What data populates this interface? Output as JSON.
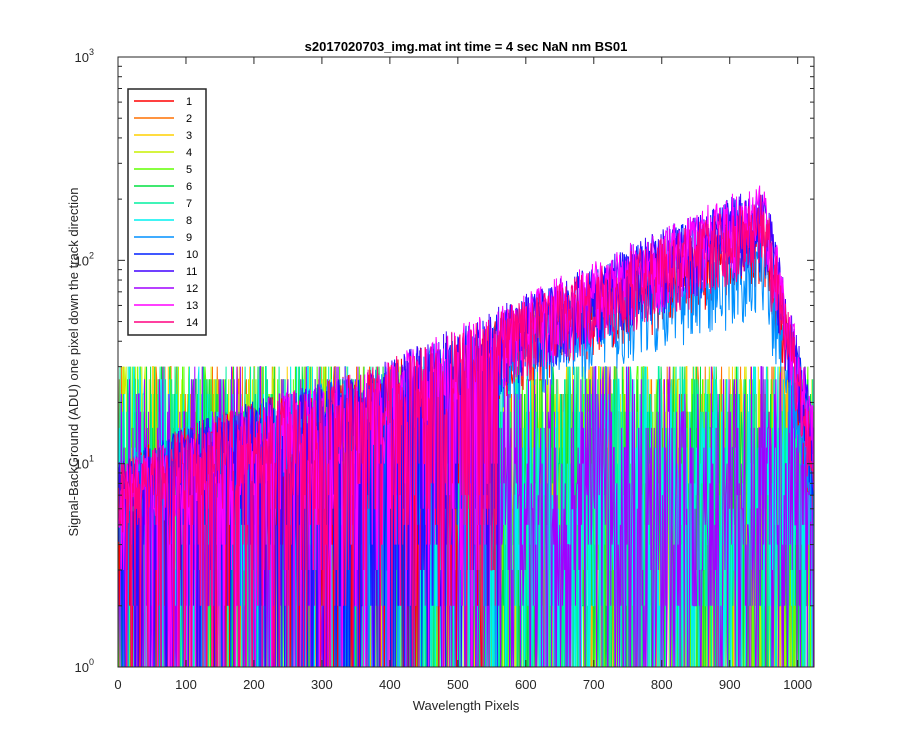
{
  "chart_data": {
    "type": "line",
    "title": "s2017020703_img.mat int time = 4 sec  NaN nm BS01",
    "xlabel": "Wavelength Pixels",
    "ylabel": "Signal-BackGround (ADU) one pixel down the track direction",
    "xlim": [
      0,
      1024
    ],
    "ylim": [
      1,
      1000
    ],
    "yscale": "log",
    "grid": false,
    "legend_position": "top-left",
    "x_ticks": [
      "0",
      "100",
      "200",
      "300",
      "400",
      "500",
      "600",
      "700",
      "800",
      "900",
      "1000"
    ],
    "y_ticks": [
      {
        "base": "10",
        "exp": "0",
        "value": 1
      },
      {
        "base": "10",
        "exp": "1",
        "value": 10
      },
      {
        "base": "10",
        "exp": "2",
        "value": 100
      },
      {
        "base": "10",
        "exp": "3",
        "value": 1000
      }
    ],
    "series": [
      {
        "name": "1",
        "color": "#ff0000",
        "kind": "signal",
        "peak": 130
      },
      {
        "name": "2",
        "color": "#ff7000",
        "kind": "noise"
      },
      {
        "name": "3",
        "color": "#ffd000",
        "kind": "noise"
      },
      {
        "name": "4",
        "color": "#c8f000",
        "kind": "noise"
      },
      {
        "name": "5",
        "color": "#60ff00",
        "kind": "noise"
      },
      {
        "name": "6",
        "color": "#00e040",
        "kind": "noise"
      },
      {
        "name": "7",
        "color": "#00f0a0",
        "kind": "noise"
      },
      {
        "name": "8",
        "color": "#00f0f0",
        "kind": "noise"
      },
      {
        "name": "9",
        "color": "#0090ff",
        "kind": "signal",
        "peak": 95
      },
      {
        "name": "10",
        "color": "#0020ff",
        "kind": "signal",
        "peak": 160
      },
      {
        "name": "11",
        "color": "#4000ff",
        "kind": "signal",
        "peak": 170
      },
      {
        "name": "12",
        "color": "#a000ff",
        "kind": "noise"
      },
      {
        "name": "13",
        "color": "#ff00ff",
        "kind": "signal",
        "peak": 175
      },
      {
        "name": "14",
        "color": "#ff0080",
        "kind": "signal",
        "peak": 150
      }
    ]
  }
}
